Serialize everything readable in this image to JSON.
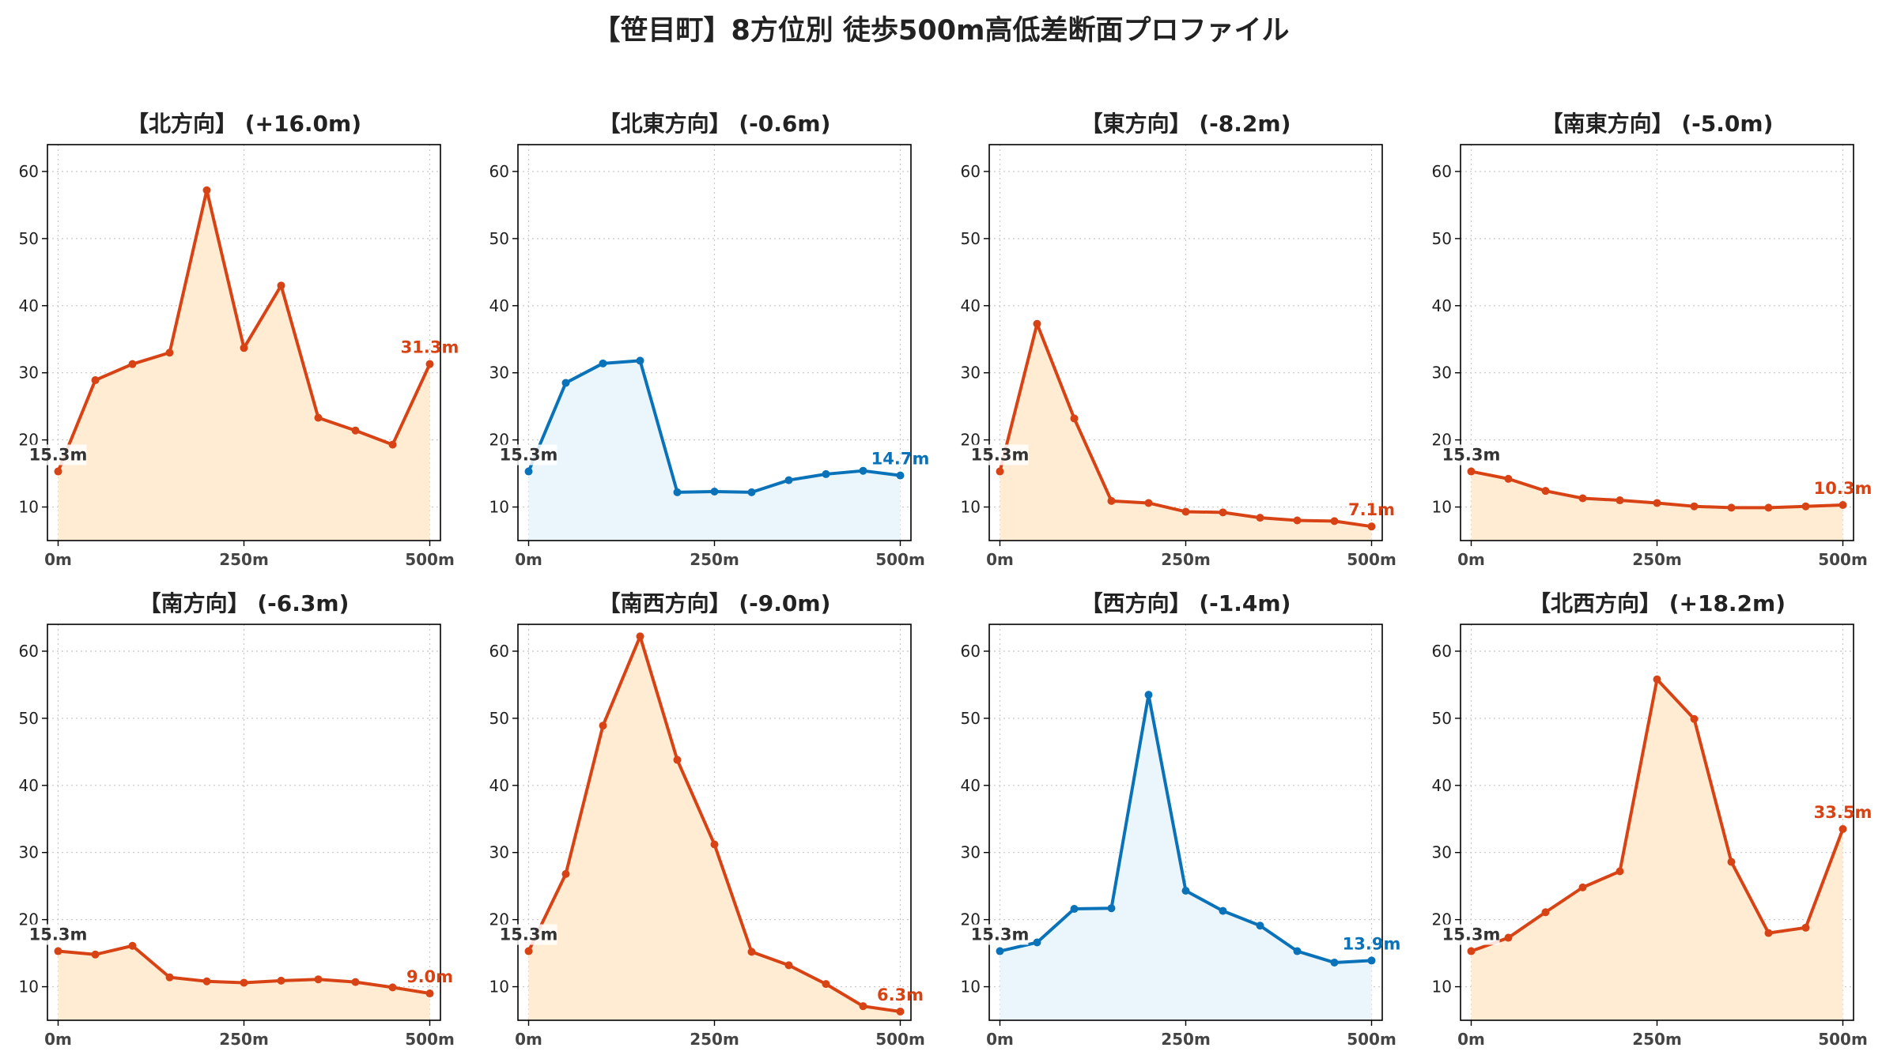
{
  "title": "【笹目町】8方位別 徒歩500m高低差断面プロファイル",
  "colors": {
    "up_line": "#d84315",
    "up_fill": "#ffecd2",
    "down_line": "#0a72b8",
    "down_fill": "#eaf6fc",
    "start_label": "#333333",
    "grid": "#c8c8c8"
  },
  "chart_data": [
    {
      "type": "area",
      "title": "【北方向】 (+16.0m)",
      "trend": "up",
      "x": [
        0,
        50,
        100,
        150,
        200,
        250,
        300,
        350,
        400,
        450,
        500
      ],
      "y": [
        15.3,
        28.9,
        31.3,
        33.0,
        57.2,
        33.7,
        43.0,
        23.3,
        21.4,
        19.3,
        31.3
      ],
      "x_ticks": [
        "0m",
        "250m",
        "500m"
      ],
      "y_ticks": [
        10,
        20,
        30,
        40,
        50,
        60
      ],
      "ylim": [
        5,
        64
      ],
      "start_label": "15.3m",
      "end_label": "31.3m",
      "grid": true
    },
    {
      "type": "area",
      "title": "【北東方向】 (-0.6m)",
      "trend": "down",
      "x": [
        0,
        50,
        100,
        150,
        200,
        250,
        300,
        350,
        400,
        450,
        500
      ],
      "y": [
        15.3,
        28.5,
        31.4,
        31.8,
        12.2,
        12.3,
        12.2,
        14.0,
        14.9,
        15.4,
        14.7
      ],
      "x_ticks": [
        "0m",
        "250m",
        "500m"
      ],
      "y_ticks": [
        10,
        20,
        30,
        40,
        50,
        60
      ],
      "ylim": [
        5,
        64
      ],
      "start_label": "15.3m",
      "end_label": "14.7m",
      "grid": true
    },
    {
      "type": "area",
      "title": "【東方向】 (-8.2m)",
      "trend": "up",
      "x": [
        0,
        50,
        100,
        150,
        200,
        250,
        300,
        350,
        400,
        450,
        500
      ],
      "y": [
        15.3,
        37.3,
        23.2,
        10.9,
        10.6,
        9.3,
        9.2,
        8.4,
        8.0,
        7.9,
        7.1
      ],
      "x_ticks": [
        "0m",
        "250m",
        "500m"
      ],
      "y_ticks": [
        10,
        20,
        30,
        40,
        50,
        60
      ],
      "ylim": [
        5,
        64
      ],
      "start_label": "15.3m",
      "end_label": "7.1m",
      "grid": true
    },
    {
      "type": "area",
      "title": "【南東方向】 (-5.0m)",
      "trend": "up",
      "x": [
        0,
        50,
        100,
        150,
        200,
        250,
        300,
        350,
        400,
        450,
        500
      ],
      "y": [
        15.3,
        14.2,
        12.4,
        11.3,
        11.0,
        10.6,
        10.1,
        9.9,
        9.9,
        10.1,
        10.3
      ],
      "x_ticks": [
        "0m",
        "250m",
        "500m"
      ],
      "y_ticks": [
        10,
        20,
        30,
        40,
        50,
        60
      ],
      "ylim": [
        5,
        64
      ],
      "start_label": "15.3m",
      "end_label": "10.3m",
      "grid": true
    },
    {
      "type": "area",
      "title": "【南方向】 (-6.3m)",
      "trend": "up",
      "x": [
        0,
        50,
        100,
        150,
        200,
        250,
        300,
        350,
        400,
        450,
        500
      ],
      "y": [
        15.3,
        14.8,
        16.1,
        11.4,
        10.8,
        10.6,
        10.9,
        11.1,
        10.7,
        9.9,
        9.0
      ],
      "x_ticks": [
        "0m",
        "250m",
        "500m"
      ],
      "y_ticks": [
        10,
        20,
        30,
        40,
        50,
        60
      ],
      "ylim": [
        5,
        64
      ],
      "start_label": "15.3m",
      "end_label": "9.0m",
      "grid": true
    },
    {
      "type": "area",
      "title": "【南西方向】 (-9.0m)",
      "trend": "up",
      "x": [
        0,
        50,
        100,
        150,
        200,
        250,
        300,
        350,
        400,
        450,
        500
      ],
      "y": [
        15.3,
        26.8,
        48.9,
        62.2,
        43.8,
        31.2,
        15.2,
        13.2,
        10.4,
        7.1,
        6.3
      ],
      "x_ticks": [
        "0m",
        "250m",
        "500m"
      ],
      "y_ticks": [
        10,
        20,
        30,
        40,
        50,
        60
      ],
      "ylim": [
        5,
        64
      ],
      "start_label": "15.3m",
      "end_label": "6.3m",
      "grid": true
    },
    {
      "type": "area",
      "title": "【西方向】 (-1.4m)",
      "trend": "down",
      "x": [
        0,
        50,
        100,
        150,
        200,
        250,
        300,
        350,
        400,
        450,
        500
      ],
      "y": [
        15.3,
        16.6,
        21.6,
        21.7,
        53.5,
        24.3,
        21.3,
        19.1,
        15.3,
        13.6,
        13.9
      ],
      "x_ticks": [
        "0m",
        "250m",
        "500m"
      ],
      "y_ticks": [
        10,
        20,
        30,
        40,
        50,
        60
      ],
      "ylim": [
        5,
        64
      ],
      "start_label": "15.3m",
      "end_label": "13.9m",
      "grid": true
    },
    {
      "type": "area",
      "title": "【北西方向】 (+18.2m)",
      "trend": "up",
      "x": [
        0,
        50,
        100,
        150,
        200,
        250,
        300,
        350,
        400,
        450,
        500
      ],
      "y": [
        15.3,
        17.3,
        21.1,
        24.8,
        27.2,
        55.8,
        49.9,
        28.6,
        18.0,
        18.8,
        33.5
      ],
      "x_ticks": [
        "0m",
        "250m",
        "500m"
      ],
      "y_ticks": [
        10,
        20,
        30,
        40,
        50,
        60
      ],
      "ylim": [
        5,
        64
      ],
      "start_label": "15.3m",
      "end_label": "33.5m",
      "grid": true
    }
  ]
}
